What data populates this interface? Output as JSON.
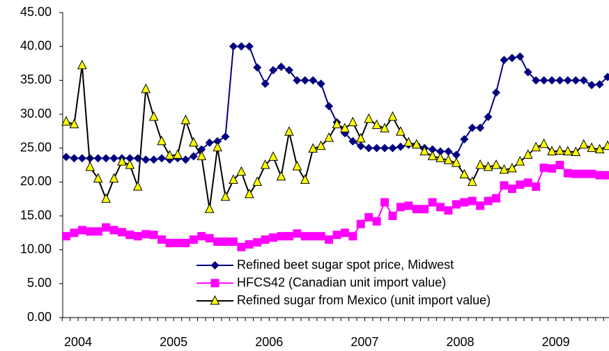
{
  "chart_data": {
    "type": "line",
    "categories": [
      "2004",
      null,
      null,
      null,
      null,
      null,
      null,
      null,
      null,
      null,
      null,
      null,
      "2005",
      null,
      null,
      null,
      null,
      null,
      null,
      null,
      null,
      null,
      null,
      null,
      "2006",
      null,
      null,
      null,
      null,
      null,
      null,
      null,
      null,
      null,
      null,
      null,
      "2007",
      null,
      null,
      null,
      null,
      null,
      null,
      null,
      null,
      null,
      null,
      null,
      "2008",
      null,
      null,
      null,
      null,
      null,
      null,
      null,
      null,
      null,
      null,
      null,
      "2009",
      null,
      null,
      null,
      null,
      null,
      null,
      null,
      null
    ],
    "series": [
      {
        "name": "Refined beet sugar spot price, Midwest",
        "color": "#000080",
        "marker": "diamond",
        "values": [
          23.7,
          23.5,
          23.5,
          23.5,
          23.5,
          23.5,
          23.5,
          23.5,
          23.5,
          23.5,
          23.3,
          23.3,
          23.5,
          23.3,
          23.5,
          23.3,
          23.8,
          24.8,
          25.8,
          26.0,
          26.7,
          40.0,
          40.0,
          40.0,
          36.9,
          34.5,
          36.5,
          37.0,
          36.5,
          35.0,
          35.0,
          35.0,
          34.5,
          31.2,
          28.8,
          27.2,
          26.0,
          25.3,
          25.0,
          25.0,
          25.0,
          25.0,
          25.2,
          25.5,
          25.5,
          25.0,
          24.8,
          24.5,
          24.5,
          24.0,
          26.3,
          28.0,
          28.0,
          29.6,
          33.2,
          38.0,
          38.3,
          38.5,
          36.2,
          35.0,
          35.0,
          35.0,
          35.0,
          35.0,
          35.0,
          35.0,
          34.3,
          34.4,
          35.5
        ]
      },
      {
        "name": "HFCS42 (Canadian unit import value)",
        "color": "#FF00FF",
        "marker": "square",
        "values": [
          12.0,
          12.5,
          12.9,
          12.7,
          12.7,
          13.3,
          12.9,
          12.6,
          12.2,
          12.0,
          12.3,
          12.2,
          11.5,
          11.0,
          11.0,
          11.0,
          11.5,
          12.0,
          11.7,
          11.2,
          11.2,
          11.2,
          10.4,
          10.8,
          11.1,
          11.5,
          11.8,
          12.0,
          12.0,
          12.4,
          12.0,
          12.0,
          12.0,
          11.5,
          12.2,
          12.5,
          12.0,
          13.8,
          14.8,
          14.2,
          17.0,
          15.0,
          16.3,
          16.5,
          16.0,
          16.0,
          17.0,
          16.3,
          15.8,
          16.7,
          17.0,
          17.2,
          16.5,
          17.2,
          17.6,
          19.5,
          19.0,
          19.6,
          19.9,
          19.3,
          22.1,
          22.0,
          22.5,
          21.3,
          21.2,
          21.2,
          21.2,
          21.0,
          21.0
        ]
      },
      {
        "name": "Refined sugar from Mexico (unit import value)",
        "color": "#000000",
        "marker": "triangle",
        "marker_fill": "#FFFF00",
        "values": [
          28.9,
          28.5,
          37.2,
          22.2,
          20.5,
          17.5,
          20.5,
          23.0,
          22.5,
          19.3,
          33.7,
          29.6,
          26.0,
          23.9,
          24.0,
          29.1,
          25.8,
          23.8,
          16.0,
          25.1,
          17.8,
          20.3,
          21.5,
          18.2,
          20.0,
          22.5,
          23.7,
          20.8,
          27.4,
          22.3,
          20.3,
          24.9,
          25.3,
          26.5,
          28.5,
          27.9,
          28.8,
          26.4,
          29.3,
          28.4,
          27.9,
          29.6,
          27.4,
          25.8,
          25.5,
          24.5,
          23.8,
          23.5,
          23.2,
          22.8,
          21.1,
          20.0,
          22.5,
          22.2,
          22.5,
          21.8,
          22.0,
          23.0,
          24.0,
          25.1,
          25.6,
          24.5,
          24.6,
          24.5,
          24.4,
          25.5,
          25.0,
          24.8,
          25.3
        ]
      }
    ],
    "ylim": [
      0,
      45
    ],
    "yticks": [
      {
        "value": 0,
        "label": "0.00"
      },
      {
        "value": 5,
        "label": "5.00"
      },
      {
        "value": 10,
        "label": "10.00"
      },
      {
        "value": 15,
        "label": "15.00"
      },
      {
        "value": 20,
        "label": "20.00"
      },
      {
        "value": 25,
        "label": "25.00"
      },
      {
        "value": 30,
        "label": "30.00"
      },
      {
        "value": 35,
        "label": "35.00"
      },
      {
        "value": 40,
        "label": "40.00"
      },
      {
        "value": 45,
        "label": "45.00"
      }
    ],
    "grid": false,
    "legend": "bottom"
  }
}
